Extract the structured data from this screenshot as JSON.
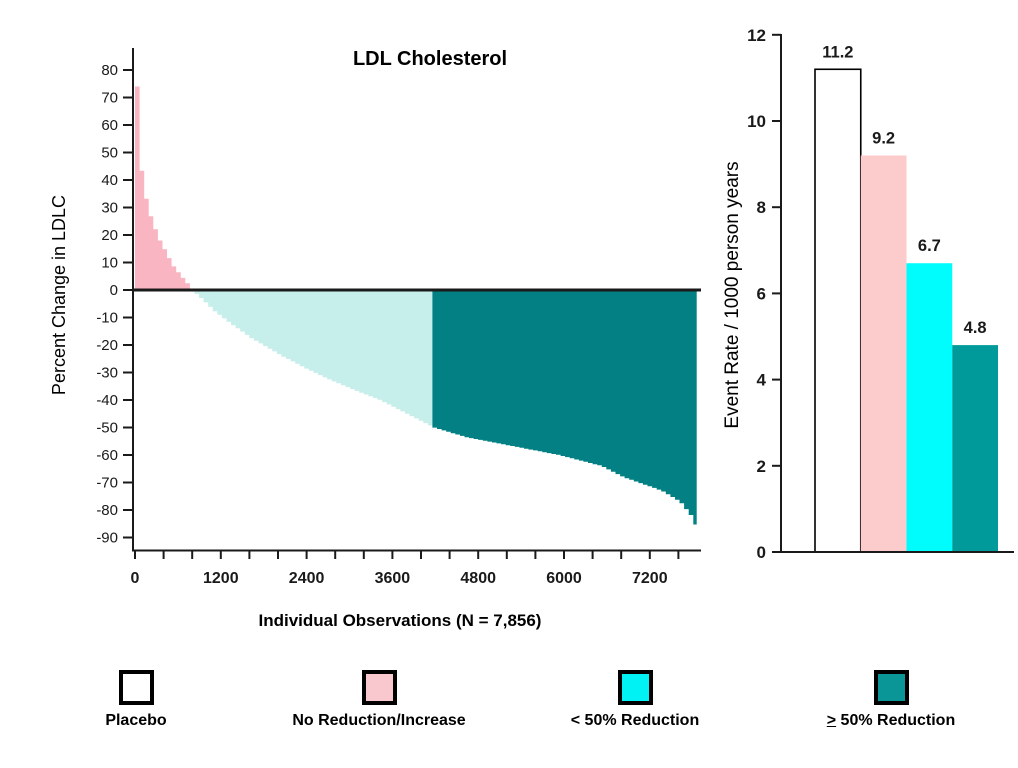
{
  "title": "LDL Cholesterol",
  "chart_data": [
    {
      "type": "area",
      "name": "ldl-waterfall",
      "title": "LDL Cholesterol",
      "xlabel": "Individual Observations (N = 7,856)",
      "ylabel": "Percent Change in LDLC",
      "n_observations": 7856,
      "ylim": [
        -90,
        80
      ],
      "y_tick_step": 10,
      "x_ticks_labeled": [
        0,
        1200,
        2400,
        3600,
        4800,
        6000,
        7200
      ],
      "x_minor_tick_step": 400,
      "x_axis_max_tick": 7600,
      "grid": false,
      "zero_line": true,
      "legend_position": "bottom",
      "segments": [
        {
          "label": "No Reduction/Increase",
          "condition": "pct_change > 0",
          "color": "#FAB5C3"
        },
        {
          "label": "< 50% Reduction",
          "condition": "-50 < pct_change <= 0",
          "color": "#C6EEEA"
        },
        {
          "label": "≥ 50% Reduction",
          "condition": "pct_change <= -50",
          "color": "#028083"
        }
      ],
      "curve_points": [
        [
          0,
          74
        ],
        [
          25,
          55
        ],
        [
          60,
          44
        ],
        [
          120,
          34
        ],
        [
          200,
          26
        ],
        [
          300,
          19
        ],
        [
          400,
          14
        ],
        [
          500,
          9
        ],
        [
          620,
          5
        ],
        [
          720,
          2
        ],
        [
          770,
          0
        ],
        [
          900,
          -3
        ],
        [
          1100,
          -8
        ],
        [
          1330,
          -12.5
        ],
        [
          1600,
          -17.5
        ],
        [
          2030,
          -24
        ],
        [
          2400,
          -29
        ],
        [
          2730,
          -33
        ],
        [
          3100,
          -37
        ],
        [
          3400,
          -40
        ],
        [
          3700,
          -44
        ],
        [
          4154,
          -50
        ],
        [
          4600,
          -53.5
        ],
        [
          5200,
          -56.5
        ],
        [
          5900,
          -60
        ],
        [
          6500,
          -64
        ],
        [
          6800,
          -68
        ],
        [
          7343,
          -73
        ],
        [
          7600,
          -77
        ],
        [
          7750,
          -82
        ],
        [
          7856,
          -88
        ]
      ]
    },
    {
      "type": "bar",
      "name": "event-rate",
      "ylabel": "Event Rate / 1000 person years",
      "categories": [
        "Placebo",
        "No Reduction/Increase",
        "< 50% Reduction",
        "≥ 50% Reduction"
      ],
      "values": [
        11.2,
        9.2,
        6.7,
        4.8
      ],
      "bar_labels": [
        "11.2",
        "9.2",
        "6.7",
        "4.8"
      ],
      "colors": [
        "#FFFFFF",
        "#FCCBCB",
        "#00FDFD",
        "#009A9B"
      ],
      "bar_outlines": [
        "#000000",
        "none",
        "none",
        "none"
      ],
      "ylim": [
        0,
        12
      ],
      "y_tick_step": 2,
      "grid": false
    }
  ],
  "legend": {
    "items": [
      {
        "label": "Placebo",
        "color": "#FFFFFF",
        "underline_first_char": false
      },
      {
        "label": "No Reduction/Increase",
        "color": "#F9C8CE",
        "underline_first_char": false
      },
      {
        "label": "< 50% Reduction",
        "color": "#00F2F4",
        "underline_first_char": false
      },
      {
        "label": "> 50% Reduction",
        "color": "#0A9597",
        "underline_first_char": true
      }
    ]
  },
  "colors": {
    "axis": "#1A1A1A",
    "zero_line": "#1A1A1A",
    "text": "#000000",
    "background": "#FFFFFF"
  }
}
